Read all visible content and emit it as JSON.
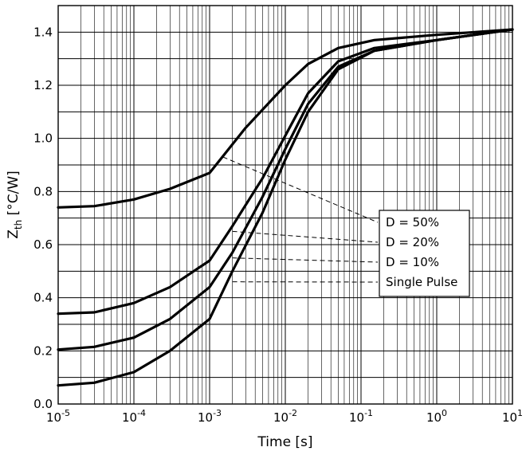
{
  "chart_data": {
    "type": "line",
    "xlabel": "Time [s]",
    "ylabel": "Z_th [°C/W]",
    "x_scale": "log",
    "xlim": [
      1e-05,
      10
    ],
    "ylim": [
      0.0,
      1.5
    ],
    "grid": true,
    "x_ticks": [
      {
        "value": 1e-05,
        "base": "10",
        "exp": "-5"
      },
      {
        "value": 0.0001,
        "base": "10",
        "exp": "-4"
      },
      {
        "value": 0.001,
        "base": "10",
        "exp": "-3"
      },
      {
        "value": 0.01,
        "base": "10",
        "exp": "-2"
      },
      {
        "value": 0.1,
        "base": "10",
        "exp": "-1"
      },
      {
        "value": 1,
        "base": "10",
        "exp": "0"
      },
      {
        "value": 10,
        "base": "10",
        "exp": "1"
      }
    ],
    "y_ticks": [
      {
        "value": 0.0,
        "label": "0.0"
      },
      {
        "value": 0.2,
        "label": "0.2"
      },
      {
        "value": 0.4,
        "label": "0.4"
      },
      {
        "value": 0.6,
        "label": "0.6"
      },
      {
        "value": 0.8,
        "label": "0.8"
      },
      {
        "value": 1.0,
        "label": "1.0"
      },
      {
        "value": 1.2,
        "label": "1.2"
      },
      {
        "value": 1.4,
        "label": "1.4"
      }
    ],
    "legend_placement": "right, inside plot",
    "series": [
      {
        "name": "D = 50%",
        "x": [
          1e-05,
          3e-05,
          0.0001,
          0.0003,
          0.001,
          0.003,
          0.01,
          0.02,
          0.05,
          0.15,
          1,
          10
        ],
        "y": [
          0.74,
          0.745,
          0.77,
          0.81,
          0.87,
          1.04,
          1.2,
          1.28,
          1.34,
          1.37,
          1.39,
          1.41
        ],
        "annotate_at": {
          "x": 0.0015,
          "y": 0.93
        }
      },
      {
        "name": "D = 20%",
        "x": [
          1e-05,
          3e-05,
          0.0001,
          0.0003,
          0.001,
          0.002,
          0.005,
          0.01,
          0.02,
          0.05,
          0.15,
          1,
          10
        ],
        "y": [
          0.34,
          0.345,
          0.38,
          0.44,
          0.54,
          0.67,
          0.85,
          1.01,
          1.17,
          1.29,
          1.34,
          1.37,
          1.41
        ],
        "annotate_at": {
          "x": 0.002,
          "y": 0.65
        }
      },
      {
        "name": "D = 10%",
        "x": [
          1e-05,
          3e-05,
          0.0001,
          0.0003,
          0.001,
          0.002,
          0.005,
          0.01,
          0.02,
          0.05,
          0.15,
          1,
          10
        ],
        "y": [
          0.205,
          0.215,
          0.25,
          0.32,
          0.44,
          0.57,
          0.78,
          0.96,
          1.13,
          1.27,
          1.33,
          1.37,
          1.41
        ],
        "annotate_at": {
          "x": 0.002,
          "y": 0.55
        }
      },
      {
        "name": "Single Pulse",
        "x": [
          1e-05,
          3e-05,
          0.0001,
          0.0003,
          0.001,
          0.002,
          0.005,
          0.01,
          0.02,
          0.05,
          0.15,
          1,
          10
        ],
        "y": [
          0.07,
          0.08,
          0.12,
          0.2,
          0.32,
          0.5,
          0.72,
          0.92,
          1.1,
          1.26,
          1.33,
          1.37,
          1.41
        ],
        "annotate_at": {
          "x": 0.002,
          "y": 0.46
        }
      }
    ],
    "legend_entries": [
      "D = 50%",
      "D = 20%",
      "D = 10%",
      "Single Pulse"
    ]
  }
}
